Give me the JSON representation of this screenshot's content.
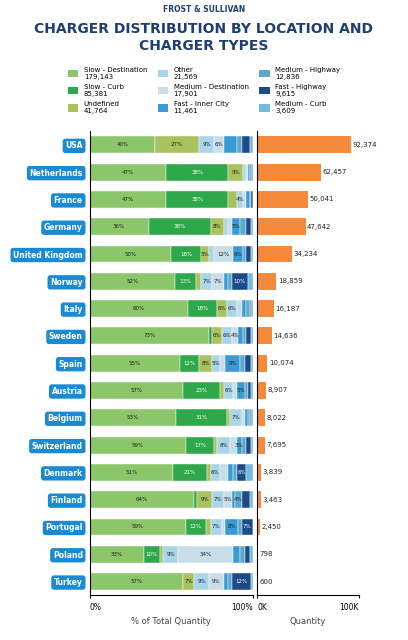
{
  "brand": "FROST & SULLIVAN",
  "chart_data": [
    {
      "type": "bar",
      "orientation": "horizontal",
      "stacked": true,
      "data_labels": true,
      "title": "CHARGER DISTRIBUTION BY LOCATION AND CHARGER TYPES",
      "xlabel": "% of Total Quantity",
      "legend": "upper center",
      "categories": [
        "USA",
        "Netherlands",
        "France",
        "Germany",
        "United Kingdom",
        "Norway",
        "Italy",
        "Sweden",
        "Spain",
        "Austria",
        "Belgium",
        "Switzerland",
        "Denmark",
        "Finland",
        "Portugal",
        "Poland",
        "Turkey"
      ],
      "xlim": [
        0,
        100
      ],
      "xticks": [
        {
          "value": 0,
          "label": "0%"
        },
        {
          "value": 100,
          "label": "100%"
        }
      ],
      "series": [
        {
          "name": "Slow - Destination",
          "total_label": "179,143",
          "color": "#8cc66b",
          "values": [
            40,
            47,
            47,
            36,
            50,
            52,
            60,
            73,
            55,
            57,
            53,
            59,
            51,
            64,
            59,
            33,
            57
          ],
          "value_labels": [
            "40%",
            "47%",
            "47%",
            "36%",
            "50%",
            "52%",
            "60%",
            "73%",
            "55%",
            "57%",
            "53%",
            "59%",
            "51%",
            "64%",
            "59%",
            "33%",
            "57%"
          ]
        },
        {
          "name": "Slow - Curb",
          "total_label": "85,381",
          "color": "#2ea84a",
          "values": [
            0,
            38,
            38,
            38,
            18,
            13,
            18,
            2,
            12,
            23,
            31,
            17,
            21,
            2,
            12,
            10,
            0
          ],
          "value_labels": [
            null,
            "38%",
            "38%",
            "38%",
            "18%",
            "13%",
            "18%",
            null,
            "12%",
            "23%",
            "31%",
            "17%",
            "21%",
            null,
            "12%",
            "10%",
            null
          ]
        },
        {
          "name": "Undefined",
          "total_label": "41,764",
          "color": "#a9c25e",
          "values": [
            27,
            9,
            5,
            8,
            5,
            3,
            6,
            6,
            8,
            2,
            2,
            2,
            2,
            9,
            3,
            2,
            7
          ],
          "value_labels": [
            "27%",
            "9%",
            null,
            "8%",
            "5%",
            null,
            "6%",
            "6%",
            "8%",
            null,
            null,
            null,
            null,
            "9%",
            null,
            null,
            "7%"
          ]
        },
        {
          "name": "Other",
          "total_label": "21,569",
          "color": "#a8d5ea",
          "values": [
            9,
            2,
            4,
            3,
            3,
            7,
            6,
            6,
            5,
            6,
            7,
            8,
            6,
            7,
            7,
            9,
            9
          ],
          "value_labels": [
            "9%",
            null,
            "4%",
            null,
            null,
            "7%",
            "6%",
            "6%",
            "5%",
            "6%",
            "7%",
            "8%",
            "6%",
            "7%",
            "7%",
            "9%",
            "9%"
          ]
        },
        {
          "name": "Medium - Destination",
          "total_label": "17,901",
          "color": "#c9dde8",
          "values": [
            6,
            1,
            2,
            2,
            12,
            7,
            3,
            4,
            3,
            2,
            2,
            4,
            5,
            5,
            2,
            34,
            9
          ],
          "value_labels": [
            "6%",
            null,
            null,
            null,
            "12%",
            "7%",
            null,
            "4%",
            null,
            null,
            null,
            null,
            null,
            "5%",
            null,
            "34%",
            "9%"
          ]
        },
        {
          "name": "Fast - Inner City",
          "total_label": "11,461",
          "color": "#3a9ad6",
          "values": [
            8,
            1,
            2,
            5,
            6,
            3,
            3,
            3,
            9,
            5,
            2,
            3,
            3,
            2,
            8,
            4,
            3
          ],
          "value_labels": [
            null,
            null,
            null,
            "5%",
            "6%",
            null,
            null,
            null,
            "9%",
            "5%",
            null,
            "3%",
            null,
            null,
            "8%",
            null,
            null
          ]
        },
        {
          "name": "Medium - Highway",
          "total_label": "12,836",
          "color": "#5ea8c8",
          "values": [
            3,
            0,
            1,
            4,
            2,
            2,
            2,
            2,
            3,
            2,
            1,
            3,
            2,
            4,
            2,
            3,
            2
          ],
          "value_labels": [
            null,
            null,
            null,
            null,
            null,
            null,
            null,
            null,
            null,
            null,
            null,
            null,
            null,
            "4%",
            null,
            null,
            null
          ]
        },
        {
          "name": "Fast - Highway",
          "total_label": "9,615",
          "color": "#1d4b8a",
          "values": [
            5,
            1,
            1,
            3,
            3,
            10,
            1,
            3,
            4,
            2,
            1,
            3,
            6,
            5,
            7,
            3,
            12
          ],
          "value_labels": [
            null,
            null,
            null,
            null,
            null,
            "10%",
            null,
            null,
            null,
            null,
            null,
            null,
            "6%",
            null,
            "7%",
            null,
            "12%"
          ]
        },
        {
          "name": "Medium - Curb",
          "total_label": "3,609",
          "color": "#74bcdc",
          "values": [
            2,
            1,
            0,
            1,
            1,
            3,
            1,
            1,
            1,
            1,
            1,
            1,
            4,
            2,
            0,
            2,
            1
          ]
        }
      ]
    },
    {
      "type": "bar",
      "orientation": "horizontal",
      "data_labels": true,
      "xlabel": "Quantity",
      "categories": [
        "USA",
        "Netherlands",
        "France",
        "Germany",
        "United Kingdom",
        "Norway",
        "Italy",
        "Sweden",
        "Spain",
        "Austria",
        "Belgium",
        "Switzerland",
        "Denmark",
        "Finland",
        "Portugal",
        "Poland",
        "Turkey"
      ],
      "xlim": [
        0,
        100000
      ],
      "xticks": [
        {
          "value": 0,
          "label": "0K"
        },
        {
          "value": 100000,
          "label": "100K"
        }
      ],
      "color": "#f58b3a",
      "values": [
        92374,
        62457,
        50041,
        47642,
        34234,
        18859,
        16187,
        14636,
        10074,
        8907,
        8022,
        7695,
        3839,
        3463,
        2450,
        798,
        600
      ],
      "value_labels": [
        "92,374",
        "62,457",
        "50,041",
        "47,642",
        "34,234",
        "18,859",
        "16,187",
        "14,636",
        "10,074",
        "8,907",
        "8,022",
        "7,695",
        "3,839",
        "3,463",
        "2,450",
        "798",
        "600"
      ]
    }
  ]
}
